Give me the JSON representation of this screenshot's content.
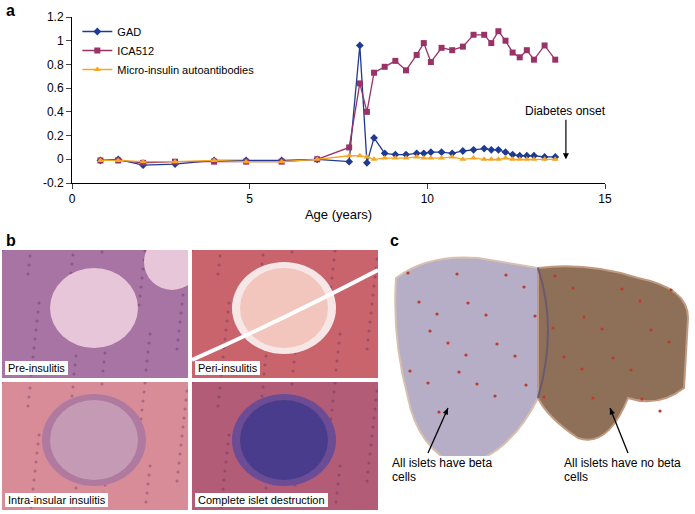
{
  "chart_data": {
    "type": "line",
    "x_label": "Age (years)",
    "xlim": [
      0,
      15
    ],
    "xticks": [
      0,
      5,
      10,
      15
    ],
    "ylim": [
      -0.2,
      1.2
    ],
    "yticks": [
      -0.2,
      0,
      0.2,
      0.4,
      0.6,
      0.8,
      1,
      1.2
    ],
    "grid": false,
    "legend": "upper left",
    "x": [
      0.8,
      1.3,
      2.0,
      2.9,
      4.0,
      4.9,
      5.9,
      6.9,
      7.8,
      8.1,
      8.3,
      8.5,
      8.8,
      9.1,
      9.4,
      9.7,
      9.9,
      10.1,
      10.4,
      10.7,
      11.0,
      11.3,
      11.6,
      11.8,
      12.0,
      12.2,
      12.4,
      12.6,
      12.8,
      13.0,
      13.3,
      13.6
    ],
    "series": [
      {
        "name": "GAD",
        "color": "#1f3a93",
        "marker": "diamond",
        "values": [
          -0.01,
          0.0,
          -0.05,
          -0.04,
          -0.01,
          -0.01,
          -0.01,
          0.0,
          -0.02,
          0.96,
          -0.03,
          0.18,
          0.05,
          0.04,
          0.04,
          0.05,
          0.05,
          0.06,
          0.06,
          0.05,
          0.07,
          0.08,
          0.09,
          0.08,
          0.08,
          0.06,
          0.04,
          0.03,
          0.03,
          0.03,
          0.02,
          0.02
        ]
      },
      {
        "name": "ICA512",
        "color": "#993366",
        "marker": "square",
        "values": [
          -0.01,
          -0.01,
          -0.03,
          -0.02,
          -0.02,
          -0.02,
          -0.02,
          0.0,
          0.1,
          0.64,
          0.4,
          0.73,
          0.78,
          0.83,
          0.75,
          0.88,
          0.98,
          0.82,
          0.94,
          0.92,
          0.95,
          1.05,
          1.05,
          0.98,
          1.08,
          1.0,
          0.9,
          0.86,
          0.92,
          0.84,
          0.96,
          0.84
        ]
      },
      {
        "name": "Micro-insulin autoantibodies",
        "color": "#f5a623",
        "marker": "triangle-up",
        "values": [
          -0.01,
          -0.01,
          -0.02,
          -0.02,
          -0.01,
          -0.02,
          -0.02,
          0.0,
          0.03,
          0.03,
          0.02,
          0.0,
          0.01,
          0.01,
          0.01,
          0.02,
          0.01,
          0.01,
          0.01,
          0.02,
          0.0,
          0.01,
          0.0,
          0.0,
          0.0,
          0.01,
          0.0,
          0.0,
          0.0,
          0.0,
          0.0,
          0.0
        ]
      }
    ],
    "annotations": [
      {
        "text": "Diabetes onset",
        "x": 13.9,
        "y": 0
      }
    ]
  },
  "figure": {
    "panel_labels": [
      "a",
      "b",
      "c"
    ],
    "panel_b": {
      "captions": [
        "Pre-insulitis",
        "Peri-insulitis",
        "Intra-insular insulitis",
        "Complete islet destruction"
      ]
    },
    "panel_c": {
      "labels": [
        "All islets have beta cells",
        "All islets have no beta cells"
      ]
    }
  }
}
